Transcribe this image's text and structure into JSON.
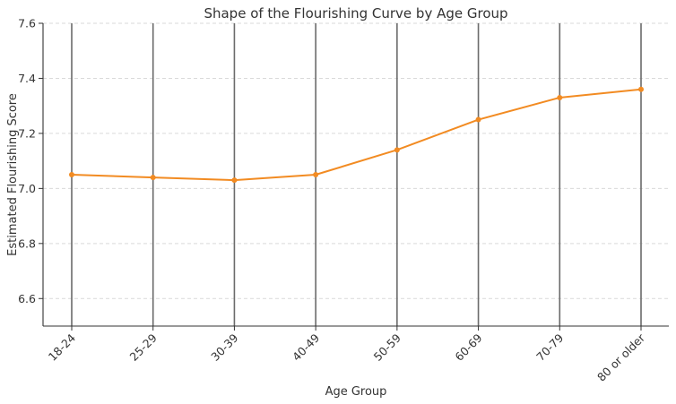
{
  "chart_data": {
    "type": "line",
    "title": "Shape of the Flourishing Curve by Age Group",
    "xlabel": "Age Group",
    "ylabel": "Estimated Flourishing Score",
    "categories": [
      "18-24",
      "25-29",
      "30-39",
      "40-49",
      "50-59",
      "60-69",
      "70-79",
      "80 or older"
    ],
    "series": [
      {
        "values": [
          7.05,
          7.04,
          7.03,
          7.05,
          7.14,
          7.25,
          7.33,
          7.36
        ]
      }
    ],
    "ylim": [
      6.5,
      7.6
    ],
    "yticks": [
      6.6,
      6.8,
      7.0,
      7.2,
      7.4,
      7.6
    ],
    "ytick_labels": [
      "6.6",
      "6.8",
      "7.0",
      "7.2",
      "7.4",
      "7.6"
    ],
    "grid": "horizontal dashed",
    "vertical_lines_at_categories": true,
    "line_color": "#f28b22",
    "vline_color": "#6b6b6b",
    "legend": "none"
  }
}
